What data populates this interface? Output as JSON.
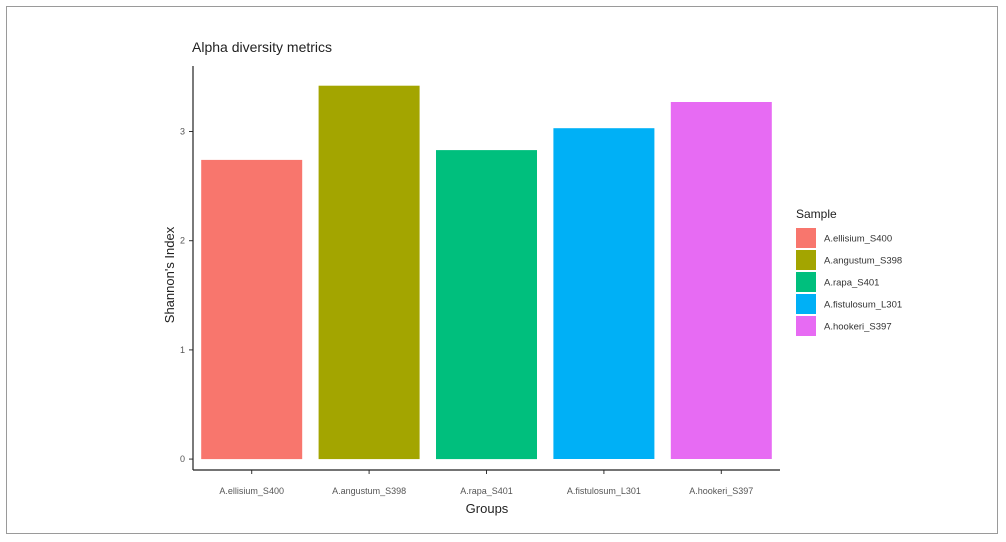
{
  "chart_data": {
    "type": "bar",
    "title": "Alpha diversity metrics",
    "xlabel": "Groups",
    "ylabel": "Shannon's Index",
    "categories": [
      "A.ellisium_S400",
      "A.angustum_S398",
      "A.rapa_S401",
      "A.fistulosum_L301",
      "A.hookeri_S397"
    ],
    "values": [
      2.74,
      3.42,
      2.83,
      3.03,
      3.27
    ],
    "colors": [
      "#F8766D",
      "#A3A500",
      "#00BF7D",
      "#00B0F6",
      "#E76BF3"
    ],
    "ylim": [
      -0.1,
      3.6
    ],
    "y_ticks": [
      0,
      1,
      2,
      3
    ],
    "grid": false,
    "legend": {
      "title": "Sample",
      "placement": "right",
      "entries": [
        "A.ellisium_S400",
        "A.angustum_S398",
        "A.rapa_S401",
        "A.fistulosum_L301",
        "A.hookeri_S397"
      ]
    }
  }
}
